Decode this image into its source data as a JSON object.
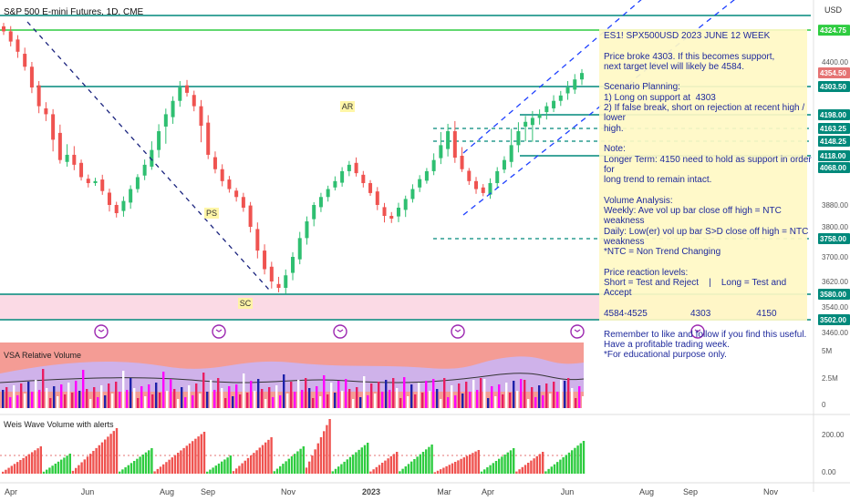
{
  "header": {
    "title": "S&P 500 E-mini Futures, 1D, CME",
    "currency": "USD"
  },
  "colors": {
    "up": "#2fbf71",
    "down": "#ef5350",
    "teal": "#00897b",
    "green": "#2ecc40",
    "navy": "#1a237e",
    "note_bg": "#fff9c4",
    "note_text": "#1f2a9c",
    "support_zone": "#f8bbd0",
    "magenta": "#ff00ff",
    "blue_bar": "#1e22aa"
  },
  "chart_data": [
    {
      "type": "candlestick",
      "title": "S&P 500 E-mini Futures, 1D, CME",
      "y_axis": {
        "range": [
          3460,
          4560
        ],
        "tick_labels": [
          "4400.00",
          "3880.00",
          "3800.00",
          "3700.00",
          "3620.00",
          "3540.00",
          "3460.00"
        ]
      },
      "x_axis": {
        "tick_labels": [
          "Apr",
          "Jun",
          "Aug",
          "Sep",
          "Nov",
          "2023",
          "Mar",
          "Apr",
          "Jun",
          "Aug",
          "Sep",
          "Nov"
        ]
      },
      "price_badges": [
        "4324.75",
        "4354.50",
        "4303.50",
        "4198.00",
        "4163.25",
        "4148.25",
        "4118.00",
        "4068.00",
        "3758.00",
        "3580.00",
        "3502.00"
      ],
      "horizontal_levels": [
        {
          "price": 4584,
          "style": "solid",
          "color": "teal"
        },
        {
          "price": 4525,
          "style": "solid",
          "color": "green"
        },
        {
          "price": 4303.5,
          "style": "solid",
          "color": "teal"
        },
        {
          "price": 4198,
          "style": "solid",
          "color": "teal"
        },
        {
          "price": 4163.25,
          "style": "dashed",
          "color": "teal"
        },
        {
          "price": 4148.25,
          "style": "dashed",
          "color": "teal"
        },
        {
          "price": 4118,
          "style": "solid",
          "color": "teal"
        },
        {
          "price": 3758,
          "style": "dashed",
          "color": "teal"
        },
        {
          "price": 3580,
          "style": "solid",
          "color": "teal"
        },
        {
          "price": 3502,
          "style": "solid",
          "color": "teal"
        }
      ],
      "wyckoff_labels": [
        "PS",
        "SC",
        "AR"
      ],
      "ohlc_path_close": [
        4520,
        4480,
        4440,
        4380,
        4300,
        4230,
        4200,
        4150,
        4100,
        4120,
        4080,
        4020,
        3990,
        4000,
        3950,
        3880,
        3850,
        3900,
        3960,
        4020,
        4080,
        4130,
        4160,
        4200,
        4250,
        4300,
        4280,
        4230,
        4170,
        4120,
        4060,
        4000,
        3960,
        3920,
        3870,
        3800,
        3720,
        3660,
        3620,
        3600,
        3640,
        3700,
        3760,
        3820,
        3880,
        3920,
        3960,
        4000,
        4050,
        4080,
        4040,
        3990,
        3940,
        3880,
        3840,
        3830,
        3870,
        3910,
        3960,
        4010,
        4050,
        4100,
        4140,
        4160,
        4110,
        4060,
        4000,
        3960,
        3940,
        3990,
        4050,
        4100,
        4140,
        4160,
        4180,
        4190,
        4200,
        4230,
        4250,
        4270,
        4300,
        4330,
        4354
      ]
    },
    {
      "type": "bar",
      "title": "VSA Relative Volume",
      "y_axis": {
        "tick_labels": [
          "5M",
          "2.5M",
          "0"
        ]
      }
    },
    {
      "type": "bar",
      "title": "Weis Wave Volume with alerts",
      "y_axis": {
        "tick_labels": [
          "200.00",
          "0.00"
        ]
      }
    }
  ],
  "note": {
    "lines": [
      "ES1! SPX500USD 2023 JUNE 12 WEEK",
      "",
      "Price broke 4303. If this becomes support,",
      "next target level will likely be 4584.",
      "",
      "Scenario Planning:",
      "1) Long on support at  4303",
      "2) If false break, short on rejection at recent high / lower",
      "high.",
      "",
      "Note:",
      "Longer Term: 4150 need to hold as support in order for",
      "long trend to remain intact.",
      "",
      "Volume Analysis:",
      "Weekly: Ave vol up bar close off high = NTC weakness",
      "Daily: Low(er) vol up bar S>D close off high = NTC weakness",
      "*NTC = Non Trend Changing",
      "",
      "Price reaction levels:",
      "Short = Test and Reject    |    Long = Test and Accept",
      "",
      "4584-4525                 4303                  4150",
      "",
      "Remember to like and follow if you find this useful.",
      "Have a profitable trading week.",
      "*For educational purpose only."
    ]
  }
}
